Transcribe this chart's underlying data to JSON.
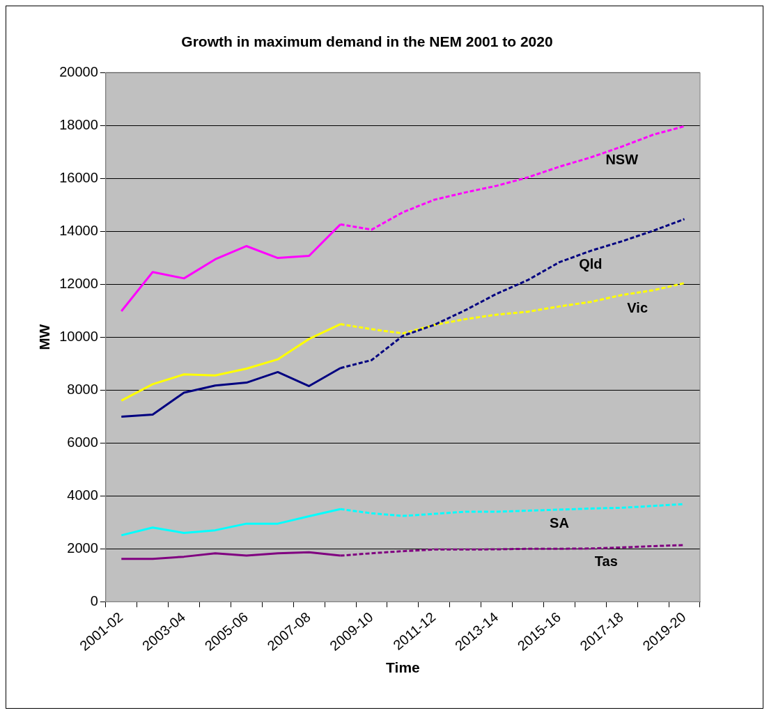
{
  "chart_data": {
    "type": "line",
    "title": "Growth in maximum demand in the NEM 2001 to 2020",
    "xlabel": "Time",
    "ylabel": "MW",
    "categories": [
      "2001-02",
      null,
      "2003-04",
      null,
      "2005-06",
      null,
      "2007-08",
      null,
      "2009-10",
      null,
      "2011-12",
      null,
      "2013-14",
      null,
      "2015-16",
      null,
      "2017-18",
      null,
      "2019-20"
    ],
    "ylim": [
      0,
      20000
    ],
    "yticks": [
      0,
      2000,
      4000,
      6000,
      8000,
      10000,
      12000,
      14000,
      16000,
      18000,
      20000
    ],
    "grid": "y",
    "legend": false,
    "marker": "none",
    "series": [
      {
        "color": "#ff00ff",
        "line_style": "solid",
        "values": [
          10980,
          12460,
          12220,
          12940,
          13440,
          12990,
          13070,
          14260,
          null,
          null,
          null,
          null,
          null,
          null,
          null,
          null,
          null,
          null,
          null
        ]
      },
      {
        "name": "NSW",
        "color": "#ff00ff",
        "line_style": "dashed",
        "values": [
          null,
          null,
          null,
          null,
          null,
          null,
          null,
          14260,
          14060,
          14720,
          15190,
          15470,
          15720,
          16040,
          16440,
          16790,
          17200,
          17650,
          17970
        ]
      },
      {
        "color": "#000080",
        "line_style": "solid",
        "values": [
          6990,
          7070,
          7900,
          8170,
          8280,
          8680,
          8150,
          8830,
          null,
          null,
          null,
          null,
          null,
          null,
          null,
          null,
          null,
          null,
          null
        ]
      },
      {
        "name": "Qld",
        "color": "#000080",
        "line_style": "dashed",
        "values": [
          null,
          null,
          null,
          null,
          null,
          null,
          null,
          8830,
          9130,
          10050,
          10460,
          11020,
          11640,
          12160,
          12830,
          13260,
          13620,
          14020,
          14460
        ]
      },
      {
        "color": "#ffff00",
        "line_style": "solid",
        "values": [
          7600,
          8220,
          8590,
          8550,
          8810,
          9160,
          9930,
          10490,
          null,
          null,
          null,
          null,
          null,
          null,
          null,
          null,
          null,
          null,
          null
        ]
      },
      {
        "name": "Vic",
        "color": "#ffff00",
        "line_style": "dashed",
        "values": [
          null,
          null,
          null,
          null,
          null,
          null,
          null,
          10490,
          10300,
          10140,
          10460,
          10680,
          10850,
          10960,
          11160,
          11330,
          11590,
          11770,
          12040
        ]
      },
      {
        "color": "#00ffff",
        "line_style": "solid",
        "values": [
          2510,
          2800,
          2600,
          2700,
          2950,
          2950,
          3230,
          3500,
          null,
          null,
          null,
          null,
          null,
          null,
          null,
          null,
          null,
          null,
          null
        ]
      },
      {
        "name": "SA",
        "color": "#00ffff",
        "line_style": "dashed",
        "values": [
          null,
          null,
          null,
          null,
          null,
          null,
          null,
          3500,
          3340,
          3240,
          3320,
          3400,
          3400,
          3440,
          3480,
          3520,
          3550,
          3620,
          3690
        ]
      },
      {
        "color": "#800080",
        "line_style": "solid",
        "values": [
          1620,
          1620,
          1700,
          1830,
          1740,
          1830,
          1870,
          1740,
          null,
          null,
          null,
          null,
          null,
          null,
          null,
          null,
          null,
          null,
          null
        ]
      },
      {
        "name": "Tas",
        "color": "#800080",
        "line_style": "dashed",
        "values": [
          null,
          null,
          null,
          null,
          null,
          null,
          null,
          1740,
          1830,
          1910,
          1970,
          1970,
          1980,
          2000,
          2000,
          2010,
          2050,
          2100,
          2140
        ]
      }
    ]
  }
}
